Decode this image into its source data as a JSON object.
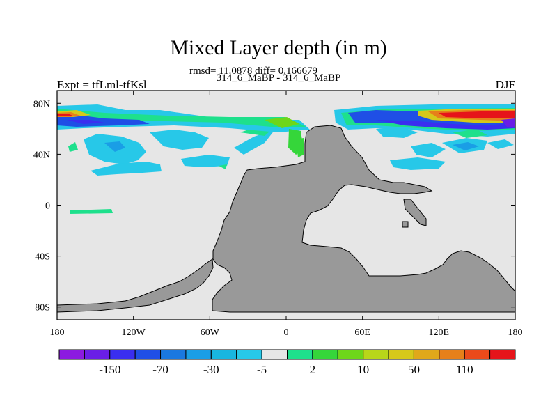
{
  "chart_data": {
    "type": "heatmap",
    "title": "Mixed Layer depth (in m)",
    "stats_text": "rmsd= 11.0878 diff= 0.166679",
    "subtitle": "314_6_MaBP - 314_6_MaBP",
    "left_label": "Expt = tfLml-tfKsl",
    "right_label": "DJF",
    "x_range": [
      -180,
      180
    ],
    "y_range": [
      -90,
      90
    ],
    "x_ticks": [
      {
        "value": -180,
        "label": "180"
      },
      {
        "value": -120,
        "label": "120W"
      },
      {
        "value": -60,
        "label": "60W"
      },
      {
        "value": 0,
        "label": "0"
      },
      {
        "value": 60,
        "label": "60E"
      },
      {
        "value": 120,
        "label": "120E"
      },
      {
        "value": 180,
        "label": "180"
      }
    ],
    "y_ticks": [
      {
        "value": 80,
        "label": "80N"
      },
      {
        "value": 40,
        "label": "40N"
      },
      {
        "value": 0,
        "label": "0"
      },
      {
        "value": -40,
        "label": "40S"
      },
      {
        "value": -80,
        "label": "80S"
      }
    ],
    "colorbar": {
      "boxes": [
        {
          "value": "<-150",
          "color": "#8c1ae0"
        },
        {
          "value": "-150 to -110",
          "color": "#6a1ee6"
        },
        {
          "value": "-110 to -70",
          "color": "#3a2ef0"
        },
        {
          "value": "-70 to -50",
          "color": "#1f4fe6"
        },
        {
          "value": "-50 to -30",
          "color": "#1a78e0"
        },
        {
          "value": "-30 to -10",
          "color": "#1a9ee6"
        },
        {
          "value": "-10 to -5",
          "color": "#18b6e0"
        },
        {
          "value": "-5 to -2",
          "color": "#27c8e8"
        },
        {
          "value": "-2 to 2",
          "color": "#e6e6e6"
        },
        {
          "value": "2 to 5",
          "color": "#1ee08c"
        },
        {
          "value": "5 to 10",
          "color": "#35d63a"
        },
        {
          "value": "10 to 20",
          "color": "#6ed61a"
        },
        {
          "value": "20 to 30",
          "color": "#b8d61a"
        },
        {
          "value": "30 to 50",
          "color": "#d6c81a"
        },
        {
          "value": "50 to 70",
          "color": "#e0a81a"
        },
        {
          "value": "70 to 110",
          "color": "#e6801a"
        },
        {
          "value": "110 to 150",
          "color": "#eb4a1a"
        },
        {
          "value": ">150",
          "color": "#e6141a"
        }
      ],
      "labels": [
        {
          "after_box": 1,
          "label": "-150"
        },
        {
          "after_box": 3,
          "label": "-70"
        },
        {
          "after_box": 5,
          "label": "-30"
        },
        {
          "after_box": 7,
          "label": "-5"
        },
        {
          "after_box": 9,
          "label": "2"
        },
        {
          "after_box": 11,
          "label": "10"
        },
        {
          "after_box": 13,
          "label": "50"
        },
        {
          "after_box": 15,
          "label": "110"
        }
      ]
    },
    "colors": {
      "ocean_background": "#e6e6e6",
      "land": "#999999",
      "outline": "#000000"
    },
    "features": [
      {
        "name": "north-atlantic-deep-band",
        "level": "<-150 to >150",
        "lon_range": [
          -180,
          -85
        ],
        "lat_range": [
          60,
          75
        ]
      },
      {
        "name": "nordic-deep-band",
        "level": "<-150 to >150",
        "lon_range": [
          40,
          180
        ],
        "lat_range": [
          58,
          75
        ]
      },
      {
        "name": "mid-latitude-negative-patches",
        "level": "-30 to -2",
        "lon_range": [
          -150,
          -70
        ],
        "lat_range": [
          25,
          50
        ]
      },
      {
        "name": "equatorial-positive-strip",
        "level": "2 to 5",
        "lon_range": [
          -155,
          -125
        ],
        "lat_range": [
          -6,
          -3
        ]
      }
    ]
  }
}
